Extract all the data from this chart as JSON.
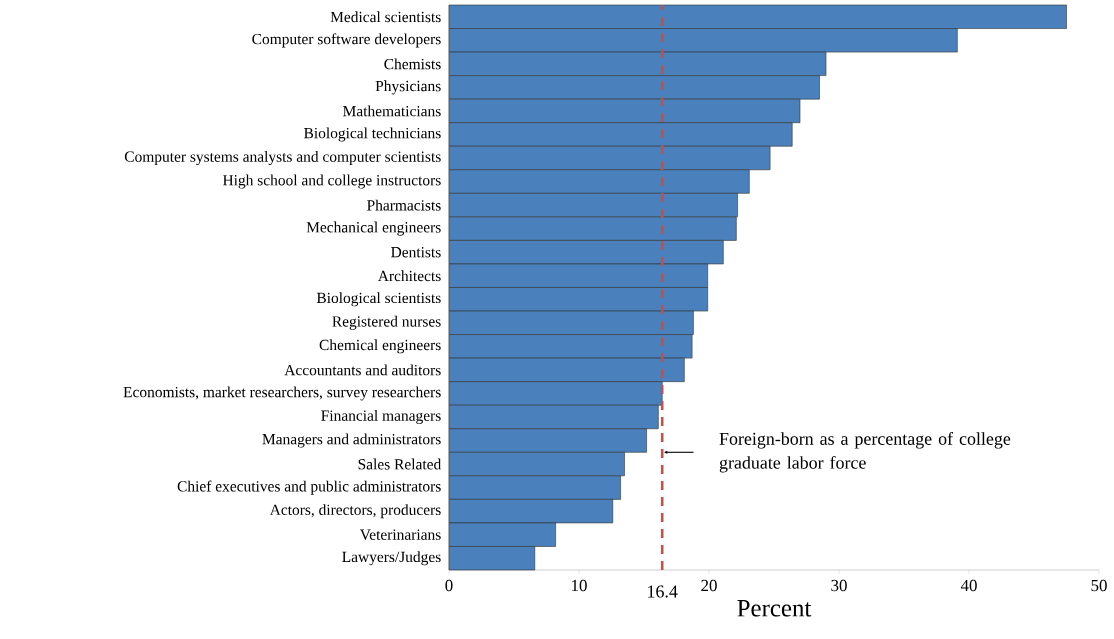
{
  "chart_data": {
    "type": "bar",
    "orientation": "horizontal",
    "xlabel": "Percent",
    "color": "#4a81bc",
    "categories": [
      "Medical scientists",
      "Computer software developers",
      "Chemists",
      "Physicians",
      "Mathematicians",
      "Biological technicians",
      "Computer systems analysts and computer scientists",
      "High school and college instructors",
      "Pharmacists",
      "Mechanical engineers",
      "Dentists",
      "Architects",
      "Biological scientists",
      "Registered nurses",
      "Chemical engineers",
      "Accountants and auditors",
      "Economists, market researchers, survey researchers",
      "Financial managers",
      "Managers and administrators",
      "Sales Related",
      "Chief executives and public administrators",
      "Actors, directors, producers",
      "Veterinarians",
      "Lawyers/Judges"
    ],
    "values": [
      47.5,
      39.1,
      29.0,
      28.5,
      27.0,
      26.4,
      24.7,
      23.1,
      22.2,
      22.1,
      21.1,
      19.9,
      19.9,
      18.8,
      18.7,
      18.1,
      16.4,
      16.1,
      15.2,
      13.5,
      13.2,
      12.6,
      8.2,
      6.6
    ],
    "xlim": [
      0,
      50
    ],
    "xticks": [
      0,
      10,
      20,
      30,
      40,
      50
    ],
    "ref_lines": [
      {
        "axis": "x",
        "value": 16.4,
        "label": "16.4",
        "color": "#c0504d",
        "line_style": "dashed"
      }
    ],
    "annotations": [
      "Foreign-born as a percentage of college graduate labor force"
    ],
    "grid": false
  }
}
